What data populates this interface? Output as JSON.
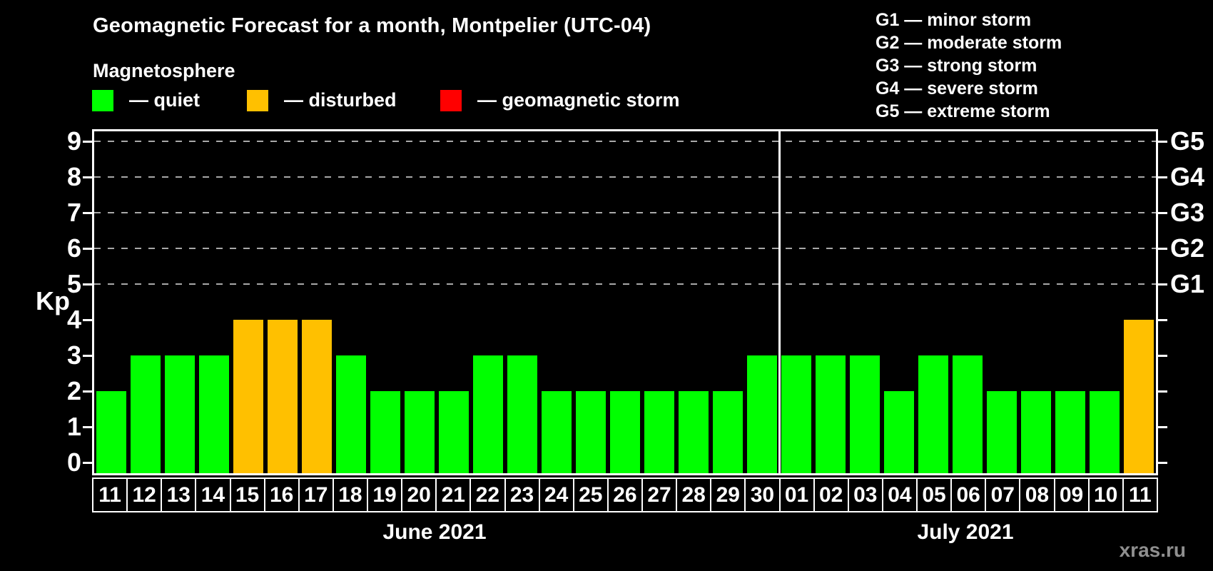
{
  "title": "Geomagnetic Forecast for a month, Montpelier (UTC-04)",
  "subtitle": "Magnetosphere",
  "magnetosphere_legend": [
    {
      "key": "quiet",
      "label": "— quiet",
      "color": "#00ff00"
    },
    {
      "key": "disturbed",
      "label": "— disturbed",
      "color": "#ffc000"
    },
    {
      "key": "storm",
      "label": "— geomagnetic storm",
      "color": "#ff0000"
    }
  ],
  "g_scale_legend": [
    "G1 — minor storm",
    "G2 — moderate storm",
    "G3 — strong storm",
    "G4 — severe storm",
    "G5 — extreme storm"
  ],
  "watermark": "xras.ru",
  "chart_data": {
    "type": "bar",
    "title": "Geomagnetic Forecast for a month, Montpelier (UTC-04)",
    "ylabel": "Kp",
    "ylim": [
      0,
      9.3
    ],
    "yticks": [
      0,
      1,
      2,
      3,
      4,
      5,
      6,
      7,
      8,
      9
    ],
    "right_axis": {
      "labels": [
        "G1",
        "G2",
        "G3",
        "G4",
        "G5"
      ],
      "at": [
        5,
        6,
        7,
        8,
        9
      ]
    },
    "gridlines_at": [
      5,
      6,
      7,
      8,
      9
    ],
    "grid_style": "dashed-gray",
    "legend_position": "top-left",
    "months": [
      {
        "label": "June 2021",
        "count": 20
      },
      {
        "label": "July 2021",
        "count": 11
      }
    ],
    "categories": [
      "11",
      "12",
      "13",
      "14",
      "15",
      "16",
      "17",
      "18",
      "19",
      "20",
      "21",
      "22",
      "23",
      "24",
      "25",
      "26",
      "27",
      "28",
      "29",
      "30",
      "01",
      "02",
      "03",
      "04",
      "05",
      "06",
      "07",
      "08",
      "09",
      "10",
      "11"
    ],
    "values": [
      2,
      3,
      3,
      3,
      4,
      4,
      4,
      3,
      2,
      2,
      2,
      3,
      3,
      2,
      2,
      2,
      2,
      2,
      2,
      3,
      3,
      3,
      3,
      2,
      3,
      3,
      2,
      2,
      2,
      2,
      4
    ],
    "statuses": [
      "quiet",
      "quiet",
      "quiet",
      "quiet",
      "disturbed",
      "disturbed",
      "disturbed",
      "quiet",
      "quiet",
      "quiet",
      "quiet",
      "quiet",
      "quiet",
      "quiet",
      "quiet",
      "quiet",
      "quiet",
      "quiet",
      "quiet",
      "quiet",
      "quiet",
      "quiet",
      "quiet",
      "quiet",
      "quiet",
      "quiet",
      "quiet",
      "quiet",
      "quiet",
      "quiet",
      "disturbed"
    ],
    "colors": {
      "quiet": "#00ff00",
      "disturbed": "#ffc000",
      "storm": "#ff0000"
    }
  }
}
